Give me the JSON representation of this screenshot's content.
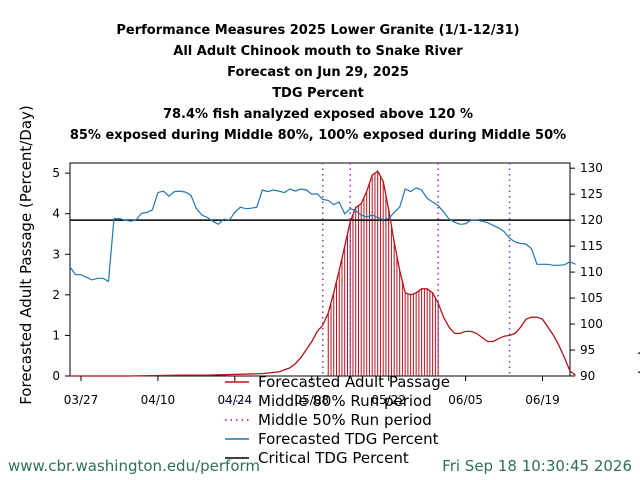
{
  "title_lines": [
    "Performance Measures 2025 Lower Granite (1/1-12/31)",
    "All Adult Chinook mouth to Snake River",
    "Forecast on Jun 29, 2025",
    "TDG Percent",
    "78.4% fish analyzed exposed above 120 %",
    "85% exposed during Middle 80%, 100% exposed during Middle 50%"
  ],
  "footer": {
    "url": "www.cbr.washington.edu/perform",
    "timestamp": "Fri Sep 18 10:30:45 2026"
  },
  "chart_data": {
    "type": "line",
    "x_axis": {
      "min_day": 0,
      "max_day": 91,
      "start_date": "03/25",
      "tick_days": [
        2,
        16,
        30,
        44,
        58,
        72,
        86
      ],
      "tick_labels": [
        "03/27",
        "04/10",
        "04/24",
        "05/08",
        "05/22",
        "06/05",
        "06/19"
      ]
    },
    "y_left": {
      "label": "Forecasted Adult Passage (Percent/Day)",
      "ylim": [
        0,
        5.25
      ],
      "ticks": [
        0,
        1,
        2,
        3,
        4,
        5
      ]
    },
    "y_right": {
      "label": "Forecasted TDG Percent (%)",
      "ylim": [
        90,
        131
      ],
      "ticks": [
        90,
        95,
        100,
        105,
        110,
        115,
        120,
        125,
        130
      ]
    },
    "legend": [
      {
        "label": "Forecasted Adult Passage",
        "color": "#b5121b",
        "style": "solid"
      },
      {
        "label": "Middle 80% Run period",
        "color": "#7a3db5",
        "style": "dotted"
      },
      {
        "label": "Middle 50% Run period",
        "color": "#b01ee0",
        "style": "dotted"
      },
      {
        "label": "Forecasted TDG Percent",
        "color": "#1f77b4",
        "style": "solid"
      },
      {
        "label": "Critical TDG Percent",
        "color": "#000000",
        "style": "solid"
      }
    ],
    "critical_tdg": 120,
    "middle80_days": [
      46,
      80
    ],
    "middle50_days": [
      51,
      67
    ],
    "passage": {
      "name": "Forecasted Adult Passage",
      "color": "#b5121b",
      "points": [
        [
          0,
          0
        ],
        [
          10,
          0
        ],
        [
          15,
          0.01
        ],
        [
          20,
          0.02
        ],
        [
          25,
          0.02
        ],
        [
          30,
          0.04
        ],
        [
          35,
          0.06
        ],
        [
          38,
          0.1
        ],
        [
          40,
          0.2
        ],
        [
          41,
          0.3
        ],
        [
          42,
          0.45
        ],
        [
          43,
          0.65
        ],
        [
          44,
          0.85
        ],
        [
          45,
          1.1
        ],
        [
          46,
          1.25
        ],
        [
          47,
          1.55
        ],
        [
          48,
          2.05
        ],
        [
          49,
          2.6
        ],
        [
          50,
          3.2
        ],
        [
          51,
          3.8
        ],
        [
          52,
          4.15
        ],
        [
          53,
          4.25
        ],
        [
          54,
          4.55
        ],
        [
          55,
          4.95
        ],
        [
          56,
          5.05
        ],
        [
          57,
          4.8
        ],
        [
          58,
          4.1
        ],
        [
          59,
          3.3
        ],
        [
          60,
          2.6
        ],
        [
          61,
          2.05
        ],
        [
          62,
          2.0
        ],
        [
          63,
          2.05
        ],
        [
          64,
          2.15
        ],
        [
          65,
          2.15
        ],
        [
          66,
          2.05
        ],
        [
          67,
          1.8
        ],
        [
          68,
          1.45
        ],
        [
          69,
          1.2
        ],
        [
          70,
          1.05
        ],
        [
          71,
          1.05
        ],
        [
          72,
          1.1
        ],
        [
          73,
          1.1
        ],
        [
          74,
          1.05
        ],
        [
          75,
          0.95
        ],
        [
          76,
          0.85
        ],
        [
          77,
          0.85
        ],
        [
          78,
          0.92
        ],
        [
          79,
          0.98
        ],
        [
          80,
          1.0
        ],
        [
          81,
          1.05
        ],
        [
          82,
          1.2
        ],
        [
          83,
          1.4
        ],
        [
          84,
          1.45
        ],
        [
          85,
          1.45
        ],
        [
          86,
          1.4
        ],
        [
          87,
          1.2
        ],
        [
          88,
          1.0
        ],
        [
          89,
          0.75
        ],
        [
          90,
          0.45
        ],
        [
          91,
          0.12
        ],
        [
          92,
          0.02
        ]
      ]
    },
    "tdg": {
      "name": "Forecasted TDG Percent",
      "color": "#1f77b4",
      "points": [
        [
          0,
          111
        ],
        [
          1,
          109.5
        ],
        [
          2,
          109.5
        ],
        [
          3,
          109
        ],
        [
          4,
          108.5
        ],
        [
          5,
          108.8
        ],
        [
          6,
          108.8
        ],
        [
          7,
          108.2
        ],
        [
          8,
          120.3
        ],
        [
          9,
          120.3
        ],
        [
          10,
          120
        ],
        [
          11,
          119.8
        ],
        [
          12,
          120
        ],
        [
          13,
          121.3
        ],
        [
          14,
          121.5
        ],
        [
          15,
          122
        ],
        [
          16,
          125.3
        ],
        [
          17,
          125.6
        ],
        [
          18,
          124.6
        ],
        [
          19,
          125.5
        ],
        [
          20,
          125.6
        ],
        [
          21,
          125.4
        ],
        [
          22,
          124.8
        ],
        [
          23,
          122.2
        ],
        [
          24,
          121
        ],
        [
          25,
          120.5
        ],
        [
          26,
          119.8
        ],
        [
          27,
          119.2
        ],
        [
          28,
          120.2
        ],
        [
          29,
          120
        ],
        [
          30,
          121.5
        ],
        [
          31,
          122.5
        ],
        [
          32,
          122.2
        ],
        [
          33,
          122.3
        ],
        [
          34,
          122.5
        ],
        [
          35,
          125.8
        ],
        [
          36,
          125.5
        ],
        [
          37,
          125.8
        ],
        [
          38,
          125.6
        ],
        [
          39,
          125.3
        ],
        [
          40,
          126
        ],
        [
          41,
          125.6
        ],
        [
          42,
          126
        ],
        [
          43,
          125.8
        ],
        [
          44,
          125
        ],
        [
          45,
          125.1
        ],
        [
          46,
          124
        ],
        [
          47,
          123.8
        ],
        [
          48,
          123
        ],
        [
          49,
          123.5
        ],
        [
          50,
          121.2
        ],
        [
          51,
          122.2
        ],
        [
          52,
          121.8
        ],
        [
          53,
          121
        ],
        [
          54,
          120.6
        ],
        [
          55,
          121
        ],
        [
          56,
          120.5
        ],
        [
          57,
          120.1
        ],
        [
          58,
          120.3
        ],
        [
          59,
          121.5
        ],
        [
          60,
          122.5
        ],
        [
          61,
          126
        ],
        [
          62,
          125.5
        ],
        [
          63,
          126.2
        ],
        [
          64,
          125.8
        ],
        [
          65,
          124.2
        ],
        [
          66,
          123.5
        ],
        [
          67,
          122.8
        ],
        [
          68,
          121.6
        ],
        [
          69,
          120.2
        ],
        [
          70,
          119.6
        ],
        [
          71,
          119.2
        ],
        [
          72,
          119.3
        ],
        [
          73,
          120
        ],
        [
          74,
          120
        ],
        [
          75,
          119.8
        ],
        [
          76,
          119.5
        ],
        [
          77,
          119
        ],
        [
          78,
          118.5
        ],
        [
          79,
          117.8
        ],
        [
          80,
          116.5
        ],
        [
          81,
          115.8
        ],
        [
          82,
          115.5
        ],
        [
          83,
          115.4
        ],
        [
          84,
          114.5
        ],
        [
          85,
          111.5
        ],
        [
          86,
          111.5
        ],
        [
          87,
          111.5
        ],
        [
          88,
          111.3
        ],
        [
          89,
          111.3
        ],
        [
          90,
          111.4
        ],
        [
          91,
          112
        ],
        [
          92,
          111.5
        ]
      ]
    }
  }
}
